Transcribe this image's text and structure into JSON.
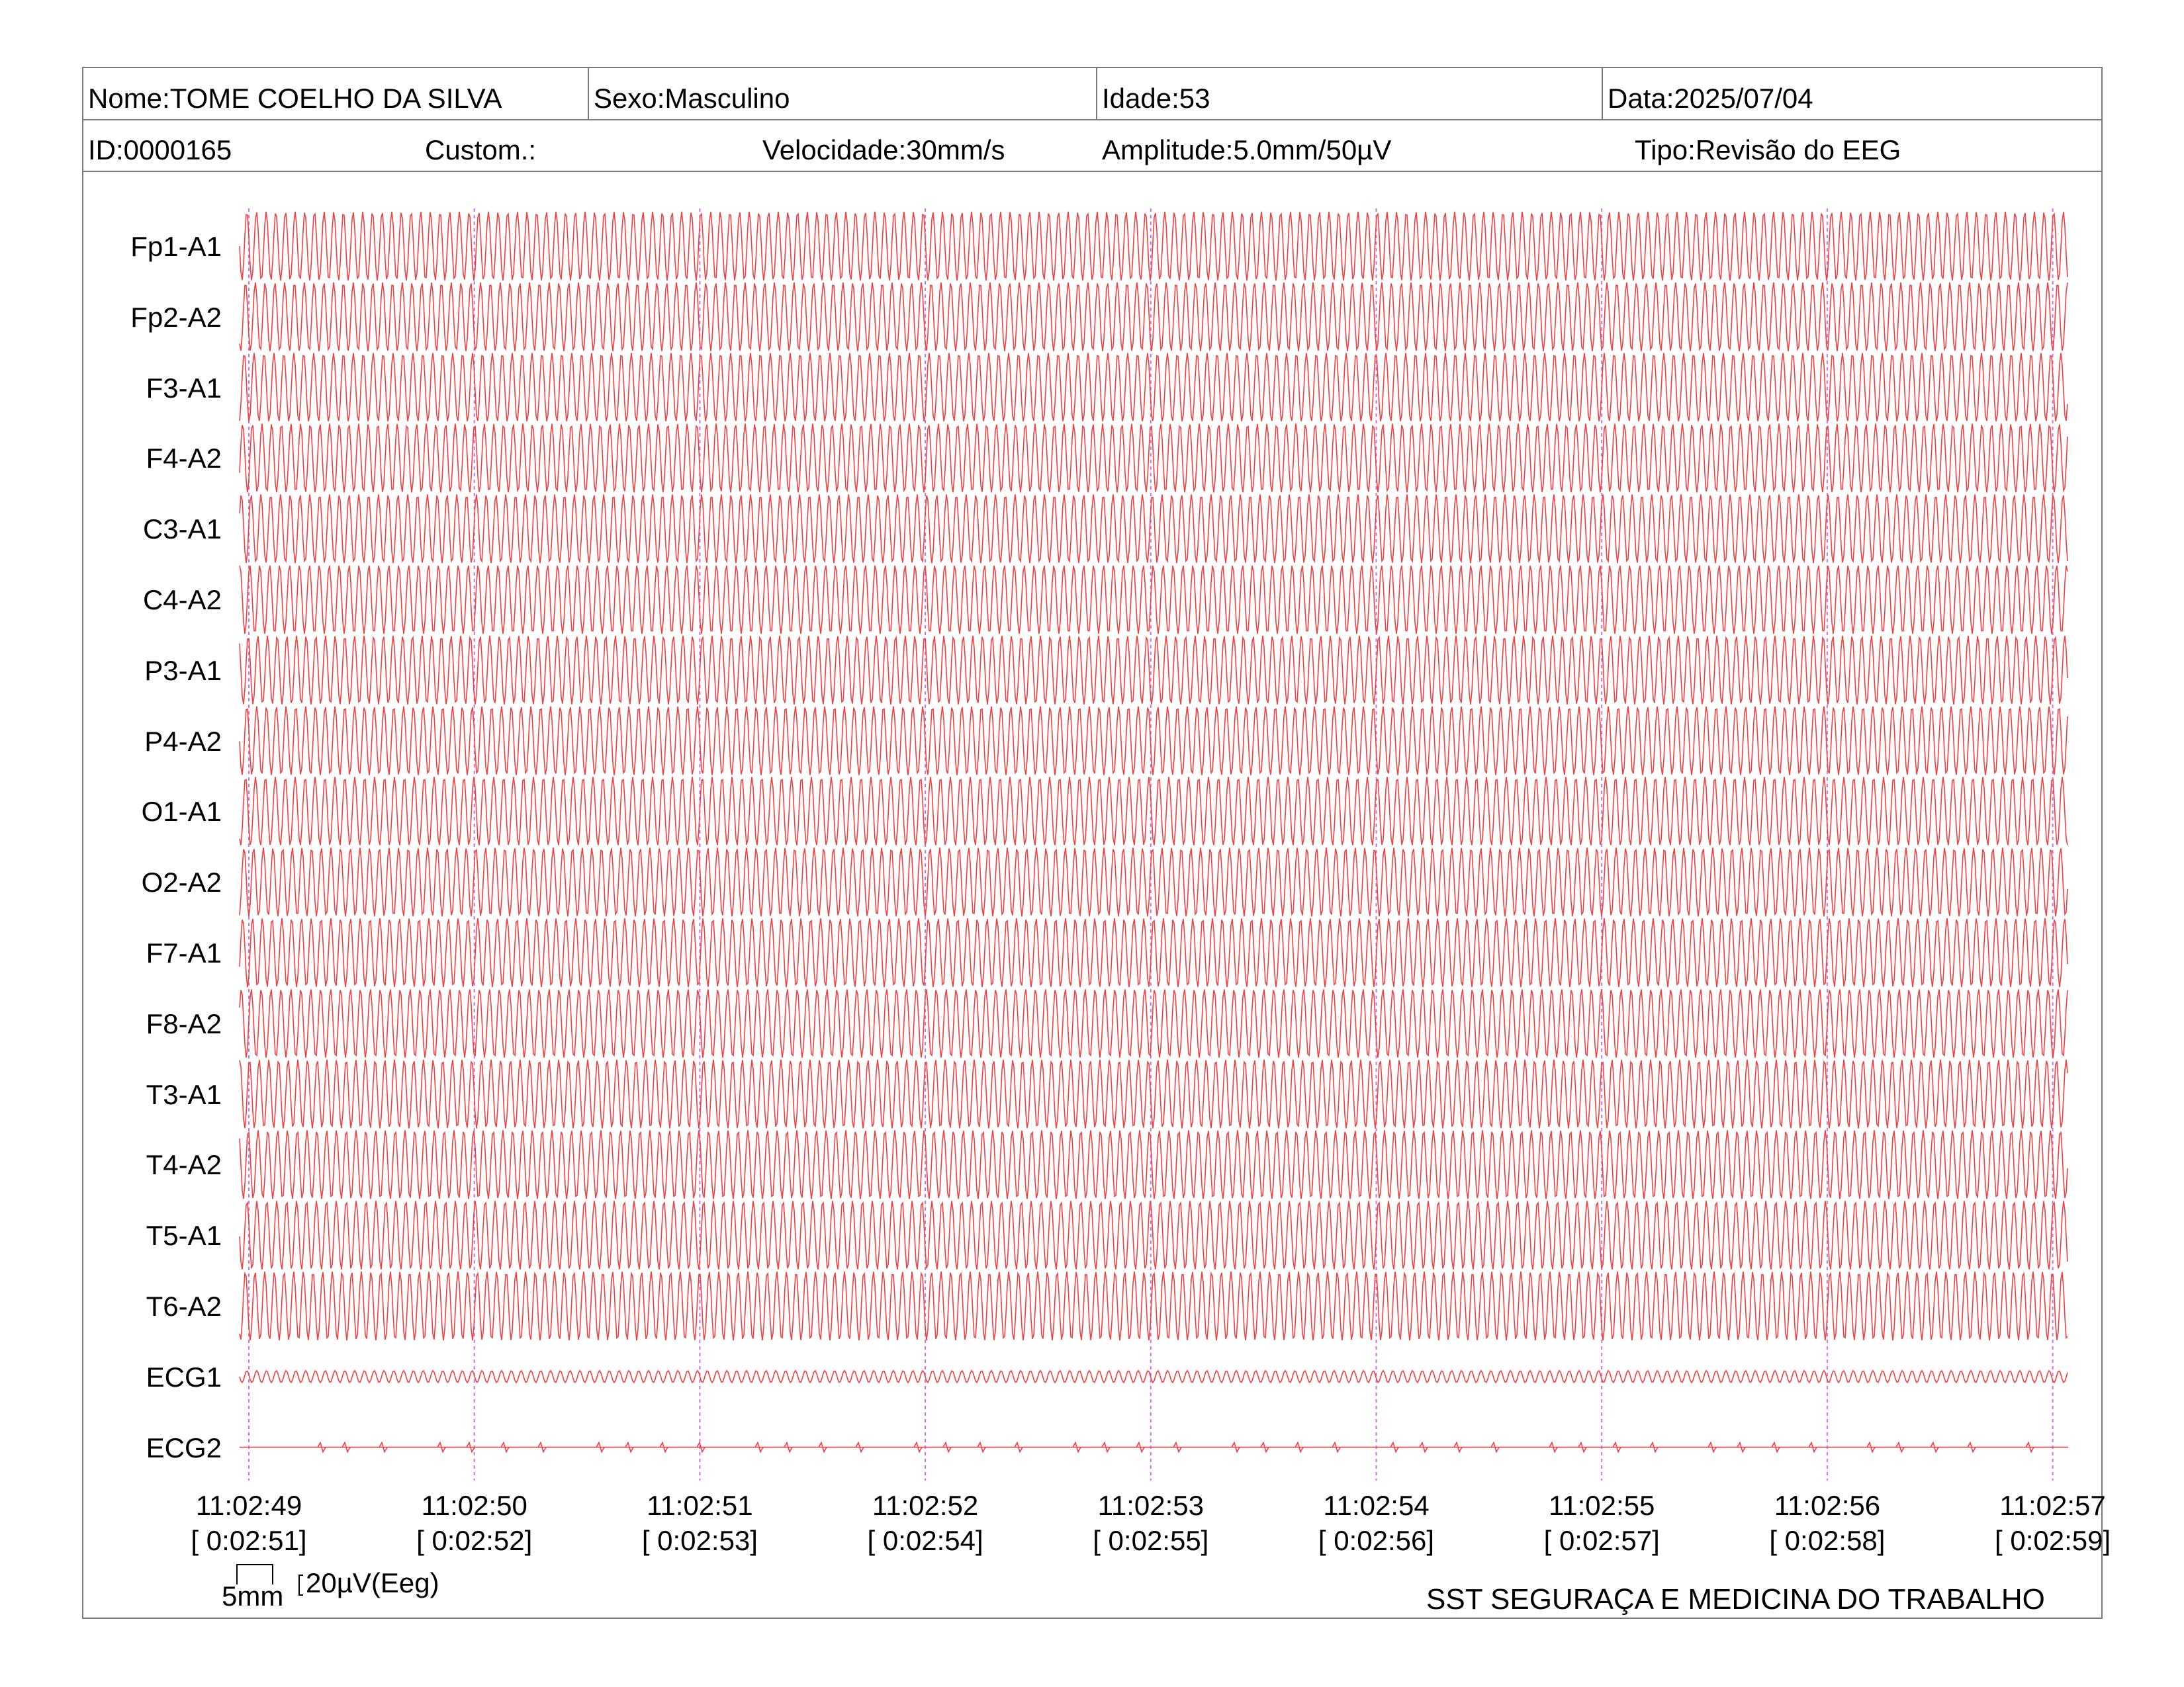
{
  "header": {
    "row1": [
      {
        "key": "nome",
        "text": "Nome:TOME COELHO DA SILVA"
      },
      {
        "key": "sexo",
        "text": "Sexo:Masculino"
      },
      {
        "key": "idade",
        "text": "Idade:53"
      },
      {
        "key": "data",
        "text": "Data:2025/07/04"
      }
    ],
    "row2": [
      {
        "key": "id",
        "text": "ID:0000165"
      },
      {
        "key": "custom",
        "text": "Custom.:"
      },
      {
        "key": "velocidade",
        "text": "Velocidade:30mm/s"
      },
      {
        "key": "amplitude",
        "text": "Amplitude:5.0mm/50µV"
      },
      {
        "key": "tipo",
        "text": "Tipo:Revisão do EEG"
      }
    ]
  },
  "channels": [
    "Fp1-A1",
    "Fp2-A2",
    "F3-A1",
    "F4-A2",
    "C3-A1",
    "C4-A2",
    "P3-A1",
    "P4-A2",
    "O1-A1",
    "O2-A2",
    "F7-A1",
    "F8-A2",
    "T3-A1",
    "T4-A2",
    "T5-A1",
    "T6-A2",
    "ECG1",
    "ECG2"
  ],
  "time_marks": [
    {
      "clock": "11:02:49",
      "elapsed": "[ 0:02:51]"
    },
    {
      "clock": "11:02:50",
      "elapsed": "[ 0:02:52]"
    },
    {
      "clock": "11:02:51",
      "elapsed": "[ 0:02:53]"
    },
    {
      "clock": "11:02:52",
      "elapsed": "[ 0:02:54]"
    },
    {
      "clock": "11:02:53",
      "elapsed": "[ 0:02:55]"
    },
    {
      "clock": "11:02:54",
      "elapsed": "[ 0:02:56]"
    },
    {
      "clock": "11:02:55",
      "elapsed": "[ 0:02:57]"
    },
    {
      "clock": "11:02:56",
      "elapsed": "[ 0:02:58]"
    },
    {
      "clock": "11:02:57",
      "elapsed": "[ 0:02:59]"
    }
  ],
  "scale": {
    "time": "5mm",
    "amplitude": "20µV(Eeg)"
  },
  "footer": {
    "organization": "SST SEGURAÇA E MEDICINA DO TRABALHO"
  },
  "colors": {
    "trace": "#f04040",
    "time_marker": "#d070e0",
    "border": "#7a7a7a"
  }
}
